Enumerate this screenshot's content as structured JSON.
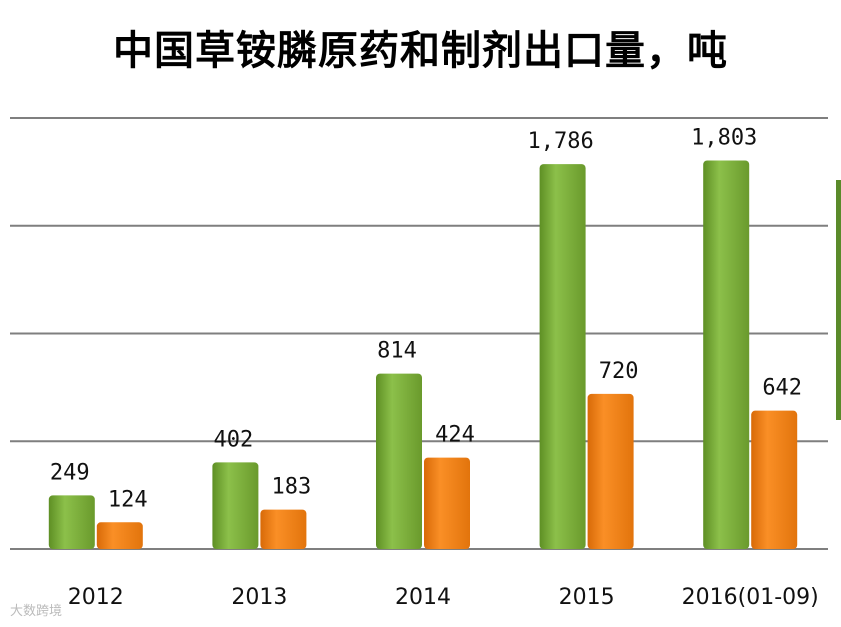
{
  "chart_data": {
    "type": "bar",
    "title": "中国草铵膦原药和制剂出口量，吨",
    "categories": [
      "2012",
      "2013",
      "2014",
      "2015",
      "2016(01-09)"
    ],
    "series": [
      {
        "values": [
          249,
          402,
          814,
          1786,
          1803
        ],
        "labels": [
          "249",
          "402",
          "814",
          "1,786",
          "1,803"
        ]
      },
      {
        "values": [
          124,
          183,
          424,
          720,
          642
        ],
        "labels": [
          "124",
          "183",
          "424",
          "720",
          "642"
        ]
      }
    ],
    "ylim": [
      0,
      2000
    ],
    "grid": true,
    "colors": [
      "#7aab35",
      "#f07d12"
    ]
  },
  "watermark": "大数跨境"
}
